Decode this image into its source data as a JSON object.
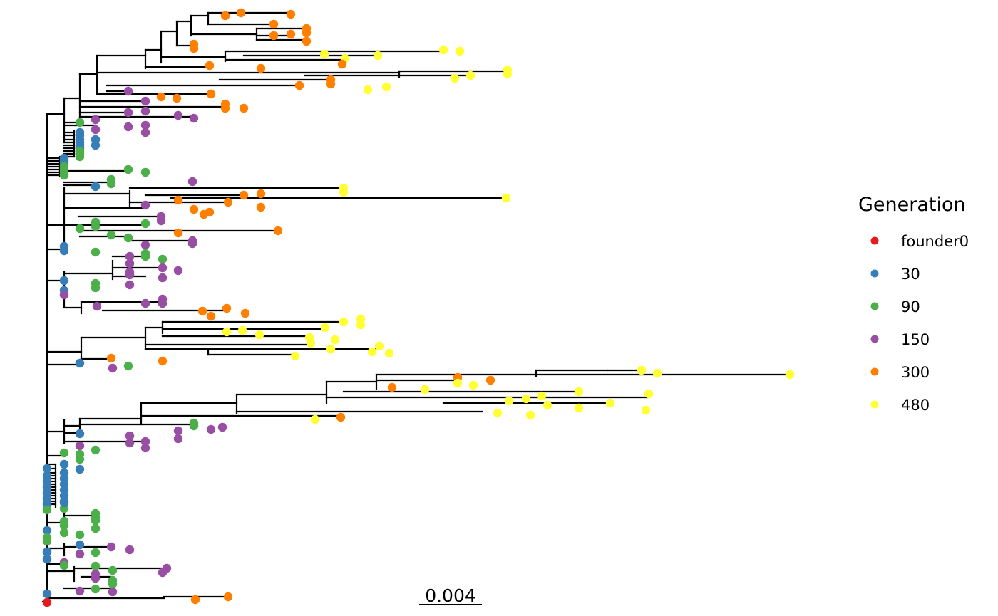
{
  "scale_bar": {
    "label": "0.004"
  },
  "legend": {
    "title": "Generation",
    "items": [
      {
        "key": "founder0",
        "label": "founder0",
        "color": "#e41a1c"
      },
      {
        "key": "g30",
        "label": "30",
        "color": "#377eb8"
      },
      {
        "key": "g90",
        "label": "90",
        "color": "#4daf4a"
      },
      {
        "key": "g150",
        "label": "150",
        "color": "#984ea3"
      },
      {
        "key": "g300",
        "label": "300",
        "color": "#ff7f00"
      },
      {
        "key": "g480",
        "label": "480",
        "color": "#ffff33"
      }
    ]
  },
  "tips_by_generation": {
    "founder0": 1,
    "30": 32,
    "90": 42,
    "150": 38,
    "300": 32,
    "480": 40
  }
}
